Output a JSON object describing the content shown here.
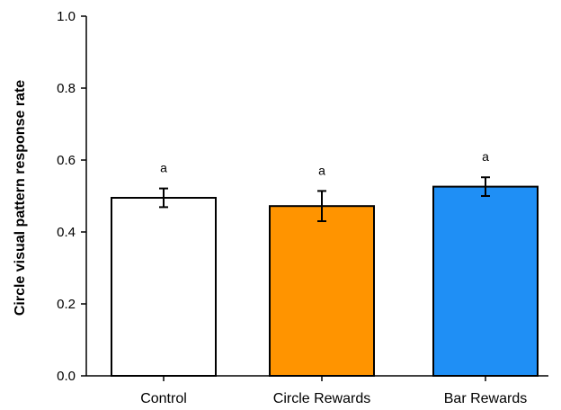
{
  "chart_data": {
    "type": "bar",
    "title": "",
    "xlabel": "",
    "ylabel": "Circle visual pattern response rate",
    "ylim": [
      0,
      1.0
    ],
    "yticks": [
      "0.0",
      "0.2",
      "0.4",
      "0.6",
      "0.8",
      "1.0"
    ],
    "categories": [
      "Control",
      "Circle Rewards",
      "Bar Rewards"
    ],
    "values": [
      0.495,
      0.472,
      0.526
    ],
    "error": [
      0.026,
      0.042,
      0.026
    ],
    "significance_labels": [
      "a",
      "a",
      "a"
    ],
    "colors": [
      "#ffffff",
      "#ff9400",
      "#1f8ff5"
    ],
    "grid": false,
    "legend": "none"
  }
}
